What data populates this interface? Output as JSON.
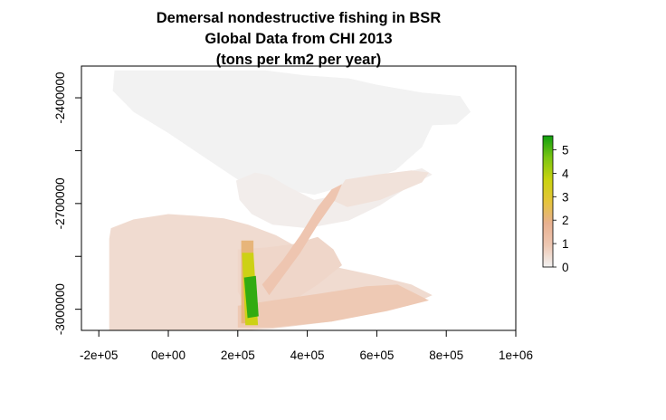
{
  "chart_data": {
    "type": "heatmap",
    "title": [
      "Demersal nondestructive fishing in BSR",
      "Global Data from CHI 2013",
      "(tons per km2 per year)"
    ],
    "xlabel": "",
    "ylabel": "",
    "xlim": [
      -250000,
      1000000
    ],
    "ylim": [
      -3060000,
      -2310000
    ],
    "x_ticks": [
      {
        "value": -200000,
        "label": "-2e+05"
      },
      {
        "value": 0,
        "label": "0e+00"
      },
      {
        "value": 200000,
        "label": "2e+05"
      },
      {
        "value": 400000,
        "label": "4e+05"
      },
      {
        "value": 600000,
        "label": "6e+05"
      },
      {
        "value": 800000,
        "label": "8e+05"
      },
      {
        "value": 1000000,
        "label": "1e+06"
      }
    ],
    "y_ticks": [
      {
        "value": -2400000,
        "label": "-2400000",
        "show_label": true
      },
      {
        "value": -2550000,
        "label": "",
        "show_label": false
      },
      {
        "value": -2700000,
        "label": "-2700000",
        "show_label": true
      },
      {
        "value": -2850000,
        "label": "",
        "show_label": false
      },
      {
        "value": -3000000,
        "label": "-3000000",
        "show_label": true
      }
    ],
    "colorbar": {
      "range": [
        0,
        5.6
      ],
      "ticks": [
        0,
        1,
        2,
        3,
        4,
        5
      ],
      "colors": [
        "#f2f2f2",
        "#eec7b2",
        "#e8b090",
        "#e5c43a",
        "#c9d30f",
        "#7bc512",
        "#0f9f10"
      ]
    },
    "regions": [
      {
        "name": "no-data-landmass",
        "value": 0.0,
        "polygon": [
          [
            -155000,
            -2322000
          ],
          [
            280000,
            -2322000
          ],
          [
            390000,
            -2336000
          ],
          [
            520000,
            -2345000
          ],
          [
            600000,
            -2363000
          ],
          [
            730000,
            -2385000
          ],
          [
            840000,
            -2395000
          ],
          [
            870000,
            -2440000
          ],
          [
            830000,
            -2475000
          ],
          [
            760000,
            -2478000
          ],
          [
            730000,
            -2540000
          ],
          [
            655000,
            -2605000
          ],
          [
            600000,
            -2625000
          ],
          [
            530000,
            -2645000
          ],
          [
            420000,
            -2675000
          ],
          [
            330000,
            -2660000
          ],
          [
            270000,
            -2642000
          ],
          [
            200000,
            -2632000
          ],
          [
            90000,
            -2560000
          ],
          [
            0,
            -2500000
          ],
          [
            -100000,
            -2440000
          ],
          [
            -160000,
            -2380000
          ]
        ]
      },
      {
        "name": "north-bay-low",
        "value": 0.1,
        "polygon": [
          [
            195000,
            -2635000
          ],
          [
            250000,
            -2612000
          ],
          [
            290000,
            -2620000
          ],
          [
            345000,
            -2652000
          ],
          [
            420000,
            -2690000
          ],
          [
            540000,
            -2665000
          ],
          [
            650000,
            -2620000
          ],
          [
            730000,
            -2600000
          ],
          [
            760000,
            -2618000
          ],
          [
            695000,
            -2650000
          ],
          [
            610000,
            -2705000
          ],
          [
            520000,
            -2748000
          ],
          [
            400000,
            -2770000
          ],
          [
            300000,
            -2760000
          ],
          [
            240000,
            -2730000
          ],
          [
            205000,
            -2690000
          ]
        ]
      },
      {
        "name": "east-arm-low",
        "value": 0.35,
        "polygon": [
          [
            510000,
            -2632000
          ],
          [
            600000,
            -2618000
          ],
          [
            700000,
            -2606000
          ],
          [
            750000,
            -2612000
          ],
          [
            730000,
            -2640000
          ],
          [
            610000,
            -2690000
          ],
          [
            515000,
            -2710000
          ],
          [
            470000,
            -2690000
          ]
        ]
      },
      {
        "name": "west-shelf",
        "value": 0.5,
        "polygon": [
          [
            -165000,
            -2770000
          ],
          [
            -100000,
            -2745000
          ],
          [
            0,
            -2730000
          ],
          [
            80000,
            -2735000
          ],
          [
            160000,
            -2742000
          ],
          [
            230000,
            -2760000
          ],
          [
            310000,
            -2790000
          ],
          [
            400000,
            -2840000
          ],
          [
            480000,
            -2880000
          ],
          [
            600000,
            -2905000
          ],
          [
            700000,
            -2930000
          ],
          [
            760000,
            -2960000
          ],
          [
            690000,
            -2990000
          ],
          [
            600000,
            -3005000
          ],
          [
            470000,
            -3035000
          ],
          [
            300000,
            -3055000
          ],
          [
            180000,
            -3062000
          ],
          [
            50000,
            -3062000
          ],
          [
            -170000,
            -3062000
          ],
          [
            -170000,
            -2800000
          ]
        ]
      },
      {
        "name": "central-basin",
        "value": 0.6,
        "polygon": [
          [
            200000,
            -2830000
          ],
          [
            280000,
            -2825000
          ],
          [
            360000,
            -2815000
          ],
          [
            430000,
            -2795000
          ],
          [
            475000,
            -2830000
          ],
          [
            500000,
            -2875000
          ],
          [
            430000,
            -2930000
          ],
          [
            360000,
            -2975000
          ],
          [
            300000,
            -3000000
          ],
          [
            230000,
            -3005000
          ],
          [
            200000,
            -2950000
          ]
        ]
      },
      {
        "name": "southern-band",
        "value": 0.9,
        "polygon": [
          [
            200000,
            -2990000
          ],
          [
            300000,
            -2975000
          ],
          [
            440000,
            -2955000
          ],
          [
            570000,
            -2935000
          ],
          [
            660000,
            -2930000
          ],
          [
            750000,
            -2975000
          ],
          [
            630000,
            -3005000
          ],
          [
            470000,
            -3035000
          ],
          [
            300000,
            -3052000
          ],
          [
            200000,
            -3052000
          ]
        ]
      },
      {
        "name": "diagonal-strip",
        "value": 1.0,
        "polygon": [
          [
            270000,
            -2930000
          ],
          [
            330000,
            -2860000
          ],
          [
            380000,
            -2790000
          ],
          [
            430000,
            -2710000
          ],
          [
            470000,
            -2660000
          ],
          [
            500000,
            -2645000
          ],
          [
            480000,
            -2690000
          ],
          [
            430000,
            -2760000
          ],
          [
            380000,
            -2840000
          ],
          [
            320000,
            -2920000
          ],
          [
            290000,
            -2960000
          ]
        ]
      },
      {
        "name": "strip-mid",
        "value": 2.1,
        "polygon": [
          [
            210000,
            -2805000
          ],
          [
            245000,
            -2805000
          ],
          [
            245000,
            -3040000
          ],
          [
            210000,
            -3040000
          ]
        ]
      },
      {
        "name": "strip-high",
        "value": 3.6,
        "polygon": [
          [
            212000,
            -2840000
          ],
          [
            245000,
            -2840000
          ],
          [
            258000,
            -3045000
          ],
          [
            222000,
            -3045000
          ]
        ]
      },
      {
        "name": "strip-peak",
        "value": 5.3,
        "polygon": [
          [
            218000,
            -2910000
          ],
          [
            252000,
            -2905000
          ],
          [
            260000,
            -3020000
          ],
          [
            228000,
            -3025000
          ]
        ]
      }
    ]
  }
}
